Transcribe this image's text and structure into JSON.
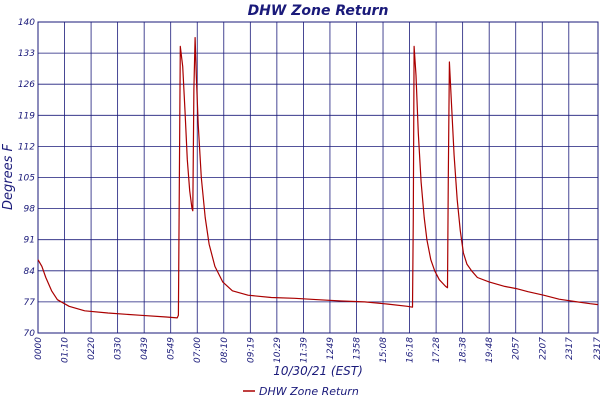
{
  "chart_data": {
    "type": "line",
    "title": "DHW Zone Return",
    "xlabel": "10/30/21 (EST)",
    "ylabel": "Degrees F",
    "ylim": [
      70,
      140
    ],
    "y_ticks": [
      "140",
      "133",
      "126",
      "119",
      "112",
      "105",
      "98",
      "91",
      "84",
      "77",
      "70"
    ],
    "x_range_minutes": [
      0,
      1440
    ],
    "x_ticks": [
      "0000",
      "01:10",
      "0220",
      "0330",
      "0439",
      "0549",
      "07:00",
      "08:10",
      "09:19",
      "10:29",
      "11:39",
      "1249",
      "1358",
      "15:08",
      "16:18",
      "17:28",
      "18:38",
      "19:48",
      "2057",
      "2207",
      "2317",
      "2317"
    ],
    "grid": true,
    "legend_position": "bottom-center",
    "series": [
      {
        "name": "DHW Zone Return",
        "color": "#aa0000",
        "points": [
          [
            0,
            86.5
          ],
          [
            10,
            85
          ],
          [
            20,
            82.5
          ],
          [
            35,
            79.5
          ],
          [
            50,
            77.5
          ],
          [
            80,
            76
          ],
          [
            120,
            75
          ],
          [
            180,
            74.5
          ],
          [
            260,
            74
          ],
          [
            330,
            73.6
          ],
          [
            358,
            73.4
          ],
          [
            361,
            74
          ],
          [
            366,
            134.5
          ],
          [
            372,
            130
          ],
          [
            378,
            120
          ],
          [
            384,
            109
          ],
          [
            390,
            102
          ],
          [
            396,
            98
          ],
          [
            398,
            97.5
          ],
          [
            401,
            125
          ],
          [
            404,
            136.5
          ],
          [
            407,
            128
          ],
          [
            412,
            117
          ],
          [
            420,
            105
          ],
          [
            430,
            96
          ],
          [
            440,
            90
          ],
          [
            455,
            85
          ],
          [
            475,
            81.5
          ],
          [
            500,
            79.5
          ],
          [
            540,
            78.5
          ],
          [
            600,
            78
          ],
          [
            660,
            77.8
          ],
          [
            720,
            77.5
          ],
          [
            780,
            77.2
          ],
          [
            840,
            77
          ],
          [
            900,
            76.5
          ],
          [
            950,
            76
          ],
          [
            963,
            75.8
          ],
          [
            965,
            96
          ],
          [
            967,
            134.5
          ],
          [
            972,
            128
          ],
          [
            978,
            115
          ],
          [
            985,
            104
          ],
          [
            993,
            96
          ],
          [
            1000,
            91
          ],
          [
            1010,
            86.5
          ],
          [
            1020,
            84
          ],
          [
            1032,
            82
          ],
          [
            1048,
            80.5
          ],
          [
            1053,
            80.2
          ],
          [
            1055,
            105
          ],
          [
            1058,
            131
          ],
          [
            1063,
            122
          ],
          [
            1070,
            110
          ],
          [
            1078,
            100
          ],
          [
            1086,
            93
          ],
          [
            1094,
            88
          ],
          [
            1103,
            85.5
          ],
          [
            1115,
            84
          ],
          [
            1130,
            82.5
          ],
          [
            1160,
            81.5
          ],
          [
            1200,
            80.5
          ],
          [
            1230,
            80
          ],
          [
            1260,
            79.3
          ],
          [
            1300,
            78.5
          ],
          [
            1340,
            77.6
          ],
          [
            1380,
            77.1
          ],
          [
            1420,
            76.6
          ],
          [
            1440,
            76.4
          ]
        ]
      }
    ]
  }
}
